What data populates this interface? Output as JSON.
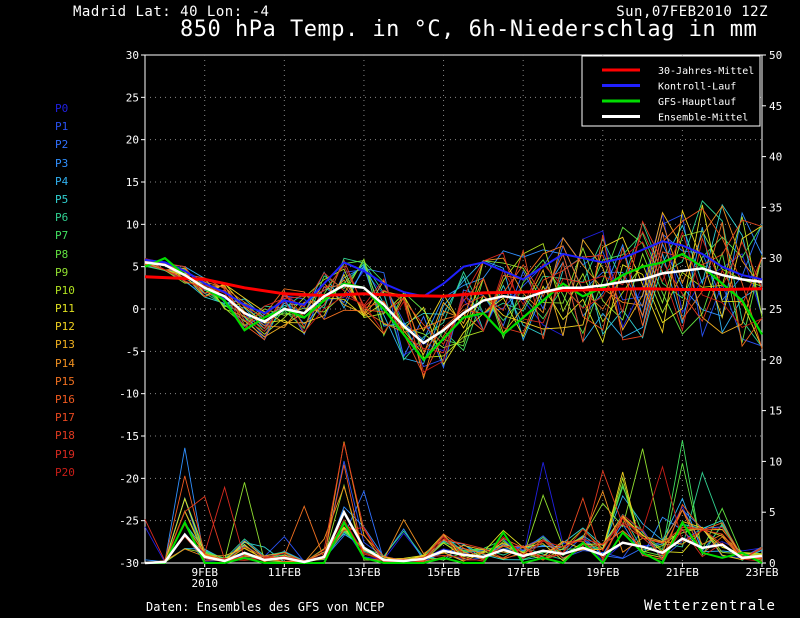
{
  "header": {
    "location": "Madrid   Lat: 40 Lon: -4",
    "date": "Sun,07FEB2010 12Z",
    "title": "850 hPa Temp. in °C, 6h-Niederschlag in mm"
  },
  "footer": {
    "source": "Daten: Ensembles des GFS von NCEP",
    "brand": "Wetterzentrale"
  },
  "members": [
    {
      "label": "P0",
      "color": "#2020e0"
    },
    {
      "label": "P1",
      "color": "#2850f0"
    },
    {
      "label": "P2",
      "color": "#3070ff"
    },
    {
      "label": "P3",
      "color": "#3090ff"
    },
    {
      "label": "P4",
      "color": "#30b0f0"
    },
    {
      "label": "P5",
      "color": "#30d0d0"
    },
    {
      "label": "P6",
      "color": "#30d090"
    },
    {
      "label": "P7",
      "color": "#40e060"
    },
    {
      "label": "P8",
      "color": "#60e040"
    },
    {
      "label": "P9",
      "color": "#90e030"
    },
    {
      "label": "P10",
      "color": "#b0e020"
    },
    {
      "label": "P11",
      "color": "#e0e020"
    },
    {
      "label": "P12",
      "color": "#f0d020"
    },
    {
      "label": "P13",
      "color": "#f0b020"
    },
    {
      "label": "P14",
      "color": "#f09020"
    },
    {
      "label": "P15",
      "color": "#f07020"
    },
    {
      "label": "P16",
      "color": "#f05a20"
    },
    {
      "label": "P17",
      "color": "#e84820"
    },
    {
      "label": "P18",
      "color": "#e03a20"
    },
    {
      "label": "P19",
      "color": "#d82a20"
    },
    {
      "label": "P20",
      "color": "#c81e18"
    }
  ],
  "chart_data": {
    "type": "line",
    "title": "850 hPa Temp. in °C, 6h-Niederschlag in mm",
    "x_ticks": [
      "9FEB\n2010",
      "11FEB",
      "13FEB",
      "15FEB",
      "17FEB",
      "19FEB",
      "21FEB",
      "23FEB"
    ],
    "x_range_days": [
      7.5,
      23
    ],
    "y_left": {
      "label": "850 hPa Temp. (°C)",
      "range": [
        -30,
        30
      ],
      "ticks": [
        30,
        25,
        20,
        15,
        10,
        5,
        0,
        -5,
        -10,
        -15,
        -20,
        -25,
        -30
      ]
    },
    "y_right": {
      "label": "6h-Niederschlag (mm)",
      "range": [
        0,
        50
      ],
      "ticks": [
        50,
        45,
        40,
        35,
        30,
        25,
        20,
        15,
        10,
        5,
        0
      ]
    },
    "grid": true,
    "legend": {
      "placement": "top-right",
      "entries": [
        {
          "name": "30-Jahres-Mittel",
          "color": "#ff0000"
        },
        {
          "name": "Kontroll-Lauf",
          "color": "#2020ff"
        },
        {
          "name": "GFS-Hauptlauf",
          "color": "#00dd00"
        },
        {
          "name": "Ensemble-Mittel",
          "color": "#ffffff"
        }
      ]
    },
    "series": [
      {
        "name": "30-Jahres-Mittel",
        "axis": "temp",
        "color": "#ff0000",
        "x": [
          7.5,
          9,
          10,
          11,
          12,
          13,
          14,
          15,
          16,
          17,
          18,
          19,
          20,
          21,
          22,
          23
        ],
        "y": [
          3.8,
          3.5,
          2.5,
          1.8,
          1.6,
          1.8,
          1.6,
          1.5,
          1.9,
          2.0,
          2.2,
          2.3,
          2.4,
          2.3,
          2.3,
          2.4
        ]
      },
      {
        "name": "Ensemble-Mittel",
        "axis": "temp",
        "color": "#ffffff",
        "x": [
          7.5,
          8.0,
          8.5,
          9.0,
          9.5,
          10.0,
          10.5,
          11.0,
          11.5,
          12.0,
          12.5,
          13.0,
          13.5,
          14.0,
          14.5,
          15.0,
          15.5,
          16.0,
          16.5,
          17.0,
          17.5,
          18.0,
          18.5,
          19.0,
          19.5,
          20.0,
          20.5,
          21.0,
          21.5,
          22.0,
          22.5,
          23.0
        ],
        "y": [
          5.5,
          5.2,
          4.0,
          2.5,
          1.5,
          -0.5,
          -1.5,
          0.0,
          -0.5,
          1.5,
          2.8,
          2.5,
          0.5,
          -2.0,
          -4.0,
          -2.5,
          -0.5,
          1.0,
          1.5,
          1.2,
          2.0,
          2.5,
          2.5,
          2.8,
          3.2,
          3.5,
          4.2,
          4.5,
          4.8,
          4.0,
          3.5,
          3.2
        ]
      },
      {
        "name": "Kontroll-Lauf",
        "axis": "temp",
        "color": "#2020ff",
        "x": [
          7.5,
          8.0,
          8.5,
          9.0,
          9.5,
          10.0,
          10.5,
          11.0,
          11.5,
          12.0,
          12.5,
          13.0,
          13.5,
          14.0,
          14.5,
          15.0,
          15.5,
          16.0,
          16.5,
          17.0,
          17.5,
          18.0,
          18.5,
          19.0,
          19.5,
          20.0,
          20.5,
          21.0,
          21.5,
          22.0,
          22.5,
          23.0
        ],
        "y": [
          5.8,
          5.5,
          4.5,
          3.0,
          2.0,
          0.5,
          -0.5,
          1.0,
          0.5,
          3.0,
          5.5,
          4.5,
          3.0,
          2.0,
          1.5,
          3.0,
          5.0,
          5.5,
          4.5,
          3.5,
          5.0,
          6.5,
          6.0,
          5.5,
          6.0,
          7.0,
          8.0,
          7.5,
          6.5,
          5.0,
          4.0,
          3.5
        ]
      },
      {
        "name": "GFS-Hauptlauf",
        "axis": "temp",
        "color": "#00dd00",
        "x": [
          7.5,
          8.0,
          8.5,
          9.0,
          9.5,
          10.0,
          10.5,
          11.0,
          11.5,
          12.0,
          12.5,
          13.0,
          13.5,
          14.0,
          14.5,
          15.0,
          15.5,
          16.0,
          16.5,
          17.0,
          17.5,
          18.0,
          18.5,
          19.0,
          19.5,
          20.0,
          20.5,
          21.0,
          21.5,
          22.0,
          22.5,
          23.0
        ],
        "y": [
          5.0,
          6.0,
          4.0,
          2.5,
          1.0,
          -2.5,
          -1.0,
          0.0,
          -1.0,
          1.0,
          3.0,
          2.5,
          0.0,
          -3.0,
          -6.0,
          -3.5,
          -1.0,
          -0.5,
          -3.0,
          -1.0,
          1.0,
          3.0,
          1.5,
          2.5,
          4.0,
          5.0,
          5.5,
          6.5,
          5.0,
          3.0,
          1.0,
          -3.0
        ]
      },
      {
        "name": "Ensemble-Mittel Niederschlag",
        "axis": "precip",
        "color": "#ffffff",
        "x": [
          7.5,
          8.0,
          8.5,
          9.0,
          9.5,
          10.0,
          10.5,
          11.0,
          11.5,
          12.0,
          12.5,
          13.0,
          13.5,
          14.0,
          14.5,
          15.0,
          15.5,
          16.0,
          16.5,
          17.0,
          17.5,
          18.0,
          18.5,
          19.0,
          19.5,
          20.0,
          20.5,
          21.0,
          21.5,
          22.0,
          22.5,
          23.0
        ],
        "y": [
          0.0,
          0.1,
          2.8,
          0.6,
          0.2,
          1.0,
          0.3,
          0.5,
          0.1,
          0.6,
          5.0,
          1.5,
          0.3,
          0.2,
          0.4,
          1.2,
          0.8,
          0.6,
          1.3,
          0.7,
          1.2,
          0.9,
          1.5,
          0.8,
          2.0,
          1.6,
          1.0,
          2.4,
          1.5,
          1.8,
          0.5,
          0.7
        ]
      },
      {
        "name": "GFS-Hauptlauf Niederschlag",
        "axis": "precip",
        "color": "#00dd00",
        "x": [
          7.5,
          8.0,
          8.5,
          9.0,
          9.5,
          10.0,
          10.5,
          11.0,
          11.5,
          12.0,
          12.5,
          13.0,
          13.5,
          14.0,
          14.5,
          15.0,
          15.5,
          16.0,
          16.5,
          17.0,
          17.5,
          18.0,
          18.5,
          19.0,
          19.5,
          20.0,
          20.5,
          21.0,
          21.5,
          22.0,
          22.5,
          23.0
        ],
        "y": [
          0.0,
          0.0,
          4.0,
          0.0,
          0.0,
          0.5,
          0.0,
          0.0,
          0.0,
          0.0,
          4.0,
          0.5,
          0.0,
          0.0,
          0.0,
          0.5,
          0.0,
          0.0,
          3.0,
          0.0,
          0.5,
          0.0,
          2.0,
          0.0,
          3.0,
          1.0,
          0.0,
          4.0,
          1.0,
          0.5,
          1.0,
          0.0
        ]
      }
    ]
  }
}
